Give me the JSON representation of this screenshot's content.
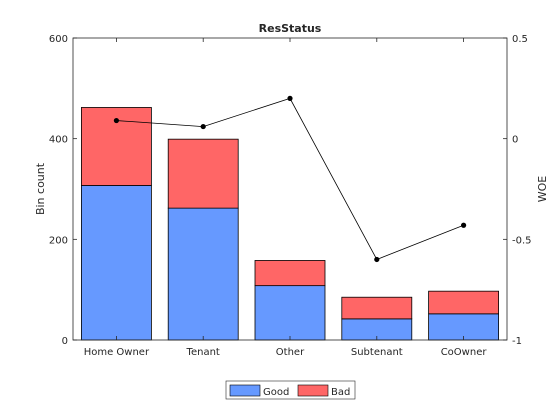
{
  "chart_data": {
    "type": "bar",
    "title": "ResStatus",
    "categories": [
      "Home Owner",
      "Tenant",
      "Other",
      "Subtenant",
      "CoOwner"
    ],
    "series": [
      {
        "name": "Good",
        "values": [
          307,
          262,
          108,
          42,
          52
        ],
        "color": "#6699ff"
      },
      {
        "name": "Bad",
        "values": [
          155,
          137,
          50,
          43,
          45
        ],
        "color": "#ff6666"
      }
    ],
    "stacked": true,
    "woe": {
      "values": [
        0.09,
        0.06,
        0.2,
        -0.6,
        -0.43
      ],
      "color": "#000000"
    },
    "ylabel": "Bin count",
    "ylim": [
      0,
      600
    ],
    "yticks": [
      "0",
      "200",
      "400",
      "600"
    ],
    "y2label": "WOE",
    "y2lim": [
      -1,
      0.5
    ],
    "y2ticks": [
      "-1",
      "-0.5",
      "0",
      "0.5"
    ],
    "legend_position": "bottom-center",
    "grid": false
  }
}
